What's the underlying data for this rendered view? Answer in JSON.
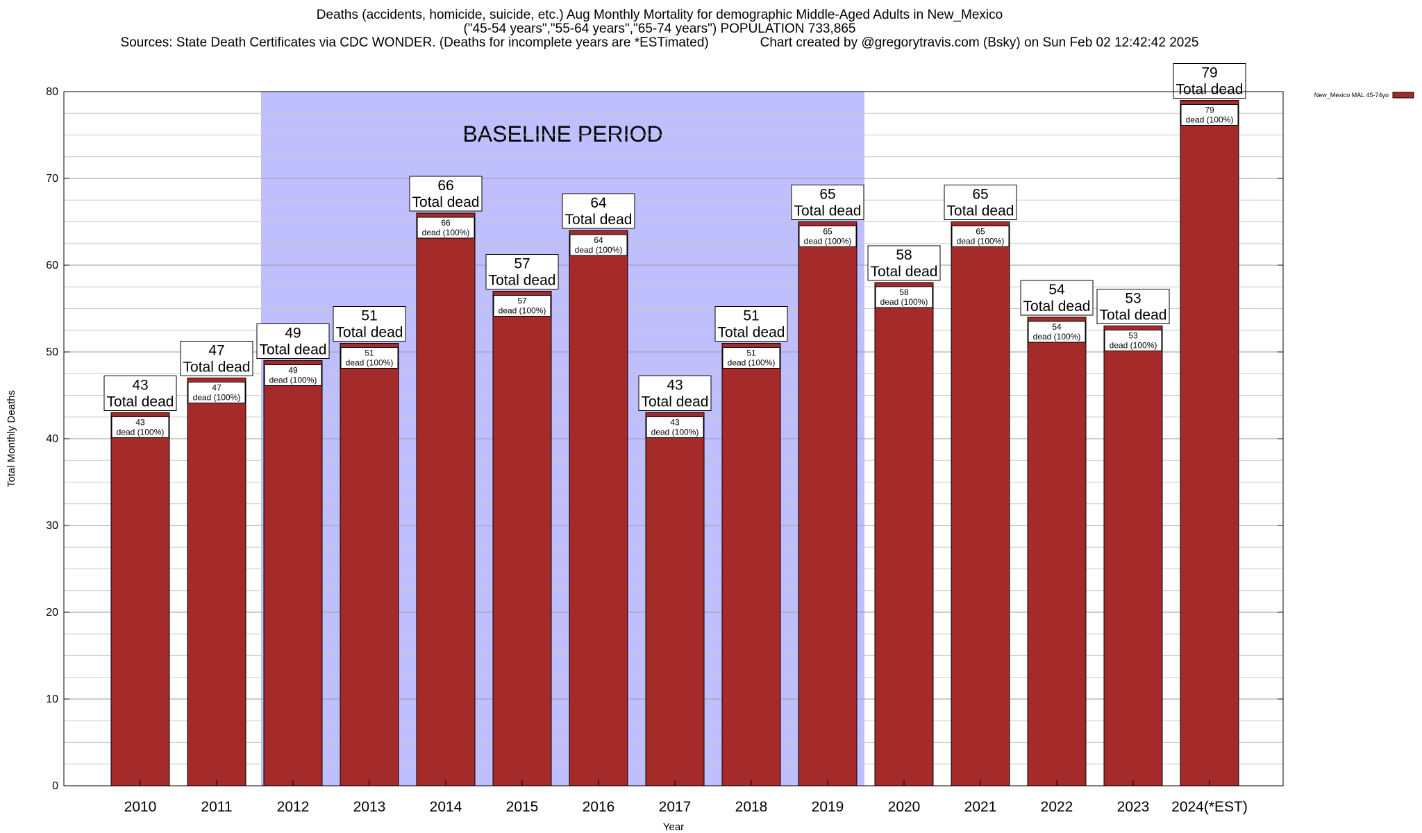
{
  "title": {
    "line1": "Deaths (accidents, homicide, suicide, etc.) Aug Monthly Mortality for demographic Middle-Aged Adults in New_Mexico",
    "line2": "(\"45-54 years\",\"55-64 years\",\"65-74 years\") POPULATION 733,865",
    "line3": "Sources: State Death Certificates via CDC WONDER. (Deaths for incomplete years are *ESTimated)              Chart created by @gregorytravis.com (Bsky) on Sun Feb 02 12:42:42 2025"
  },
  "chart_data": {
    "type": "bar",
    "categories": [
      "2010",
      "2011",
      "2012",
      "2013",
      "2014",
      "2015",
      "2016",
      "2017",
      "2018",
      "2019",
      "2020",
      "2021",
      "2022",
      "2023",
      "2024(*EST)"
    ],
    "series": [
      {
        "name": "New_Mexico MAL 45-74yo",
        "values": [
          43,
          47,
          49,
          51,
          66,
          57,
          64,
          43,
          51,
          65,
          58,
          65,
          54,
          53,
          79
        ],
        "color": "#a52a2a"
      }
    ],
    "bar_top_label": "Total dead",
    "bar_inner_label": "dead (100%)",
    "xlabel": "Year",
    "ylabel": "Total Monthly Deaths",
    "ylim": [
      0,
      80
    ],
    "yticks": [
      0,
      10,
      20,
      30,
      40,
      50,
      60,
      70,
      80
    ],
    "grid": true,
    "legend_position": "top-right",
    "baseline_period": {
      "label": "BASELINE PERIOD",
      "from": "2012",
      "to": "2019",
      "color": "#bfbffe"
    }
  }
}
